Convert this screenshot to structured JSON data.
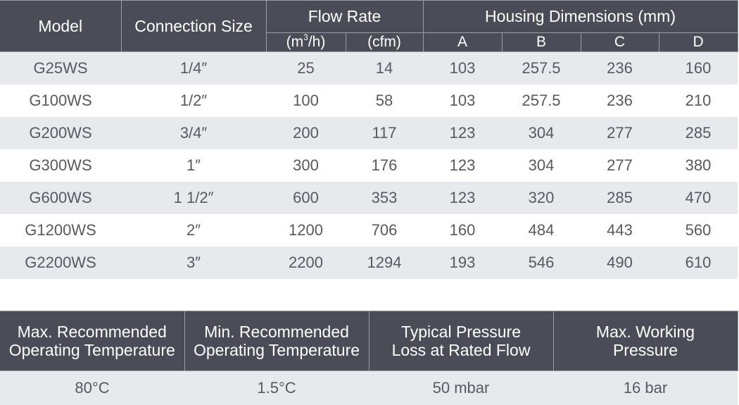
{
  "spec_table": {
    "headers": {
      "model": "Model",
      "connection_size": "Connection Size",
      "flow_rate": "Flow Rate",
      "flow_unit_m3h_prefix": "(m",
      "flow_unit_m3h_sup": "3",
      "flow_unit_m3h_suffix": "/h)",
      "flow_unit_cfm": "(cfm)",
      "housing_dimensions": "Housing Dimensions (mm)",
      "dim_a": "A",
      "dim_b": "B",
      "dim_c": "C",
      "dim_d": "D"
    },
    "rows": [
      {
        "model": "G25WS",
        "connection": "1/4″",
        "m3h": "25",
        "cfm": "14",
        "a": "103",
        "b": "257.5",
        "c": "236",
        "d": "160"
      },
      {
        "model": "G100WS",
        "connection": "1/2″",
        "m3h": "100",
        "cfm": "58",
        "a": "103",
        "b": "257.5",
        "c": "236",
        "d": "210"
      },
      {
        "model": "G200WS",
        "connection": "3/4″",
        "m3h": "200",
        "cfm": "117",
        "a": "123",
        "b": "304",
        "c": "277",
        "d": "285"
      },
      {
        "model": "G300WS",
        "connection": "1″",
        "m3h": "300",
        "cfm": "176",
        "a": "123",
        "b": "304",
        "c": "277",
        "d": "380"
      },
      {
        "model": "G600WS",
        "connection": "1 1/2″",
        "m3h": "600",
        "cfm": "353",
        "a": "123",
        "b": "320",
        "c": "285",
        "d": "470"
      },
      {
        "model": "G1200WS",
        "connection": "2″",
        "m3h": "1200",
        "cfm": "706",
        "a": "160",
        "b": "484",
        "c": "443",
        "d": "560"
      },
      {
        "model": "G2200WS",
        "connection": "3″",
        "m3h": "2200",
        "cfm": "1294",
        "a": "193",
        "b": "546",
        "c": "490",
        "d": "610"
      }
    ]
  },
  "operating_table": {
    "headers": [
      {
        "line1": "Max. Recommended",
        "line2": "Operating Temperature"
      },
      {
        "line1": "Min. Recommended",
        "line2": "Operating Temperature"
      },
      {
        "line1": "Typical Pressure",
        "line2": "Loss at Rated Flow"
      },
      {
        "line1": "Max. Working",
        "line2": "Pressure"
      }
    ],
    "values": [
      "80°C",
      "1.5°C",
      "50 mbar",
      "16 bar"
    ]
  },
  "colors": {
    "header_bg": "#4b4c57",
    "header_text": "#ffffff",
    "row_shade": "#e8e9ec",
    "cell_text": "#58595f"
  }
}
